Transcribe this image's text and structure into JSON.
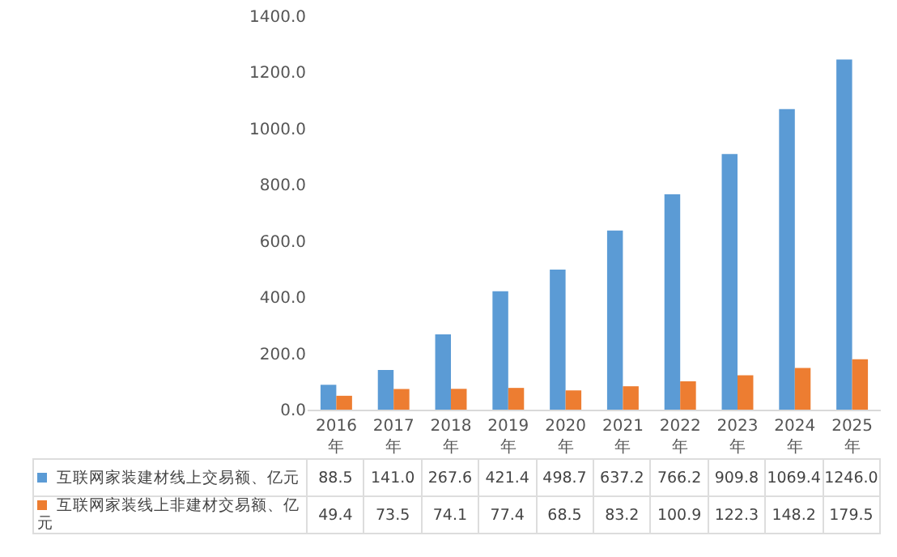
{
  "chart_data": {
    "type": "bar",
    "categories": [
      "2016年",
      "2017年",
      "2018年",
      "2019年",
      "2020年",
      "2021年",
      "2022年",
      "2023年",
      "2024年",
      "2025年"
    ],
    "series": [
      {
        "name": "互联网家装建材线上交易额、亿元",
        "color": "#5b9bd5",
        "values": [
          88.5,
          141.0,
          267.6,
          421.4,
          498.7,
          637.2,
          766.2,
          909.8,
          1069.4,
          1246.0
        ],
        "value_labels": [
          "88.5",
          "141.0",
          "267.6",
          "421.4",
          "498.7",
          "637.2",
          "766.2",
          "909.8",
          "1069.4",
          "1246.0"
        ]
      },
      {
        "name": "互联网家装线上非建材交易额、亿元",
        "color": "#ed7d31",
        "values": [
          49.4,
          73.5,
          74.1,
          77.4,
          68.5,
          83.2,
          100.9,
          122.3,
          148.2,
          179.5
        ],
        "value_labels": [
          "49.4",
          "73.5",
          "74.1",
          "77.4",
          "68.5",
          "83.2",
          "100.9",
          "122.3",
          "148.2",
          "179.5"
        ]
      }
    ],
    "ylim": [
      0,
      1400
    ],
    "yticks": [
      "0.0",
      {
        "value": 200,
        "label": "200.0"
      },
      {
        "value": 400,
        "label": "400.0"
      },
      {
        "value": 600,
        "label": "600.0"
      },
      {
        "value": 800,
        "label": "800.0"
      },
      {
        "value": 1000,
        "label": "1000.0"
      },
      {
        "value": 1200,
        "label": "1200.0"
      },
      {
        "value": 1400,
        "label": "1400.0"
      }
    ],
    "grid": false,
    "legend": "bottom"
  }
}
